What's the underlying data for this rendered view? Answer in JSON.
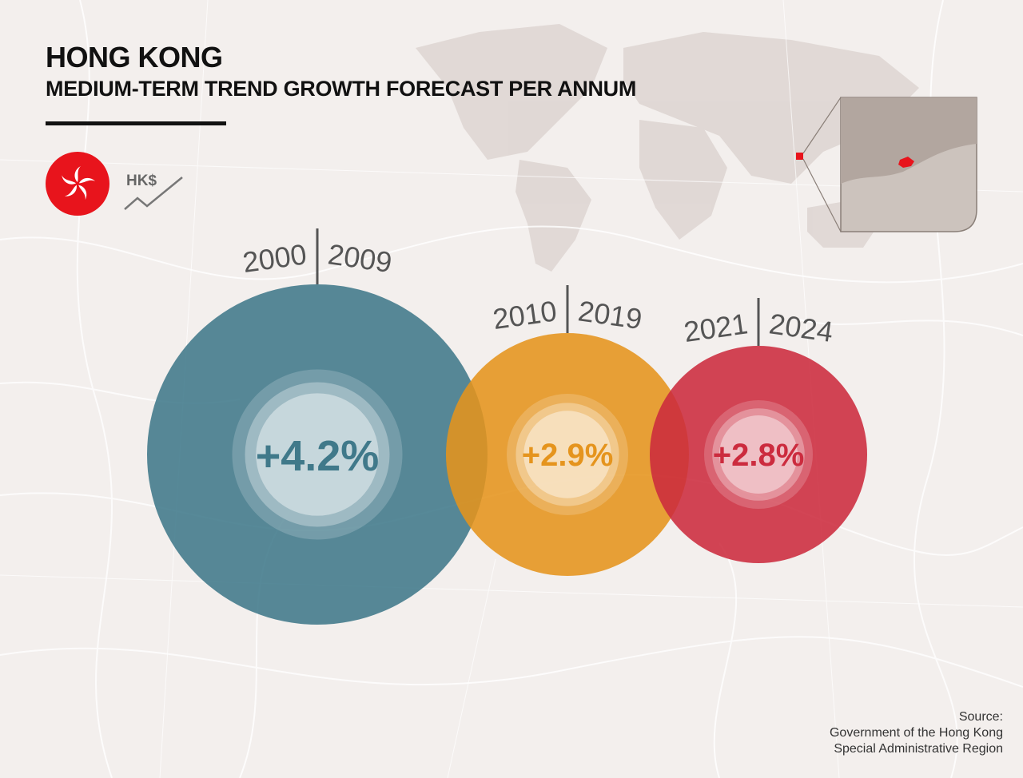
{
  "header": {
    "title": "HONG KONG",
    "subtitle": "MEDIUM-TERM TREND GROWTH FORECAST PER ANNUM"
  },
  "currency": {
    "label": "HK$",
    "icon": "trend-line-icon"
  },
  "flag": {
    "icon": "hong-kong-flag-icon",
    "color": "#e8141c"
  },
  "source": {
    "line1": "Source:",
    "line2": "Government of the Hong Kong",
    "line3": "Special Administrative Region"
  },
  "chart_data": {
    "type": "bubble",
    "title": "MEDIUM-TERM TREND GROWTH FORECAST PER ANNUM",
    "series": [
      {
        "start": "2000",
        "end": "2009",
        "value": 4.2,
        "label": "+4.2%",
        "color": "#40798a"
      },
      {
        "start": "2010",
        "end": "2019",
        "value": 2.9,
        "label": "+2.9%",
        "color": "#e5941d"
      },
      {
        "start": "2021",
        "end": "2024",
        "value": 2.8,
        "label": "+2.8%",
        "color": "#cc2b3e"
      }
    ]
  }
}
